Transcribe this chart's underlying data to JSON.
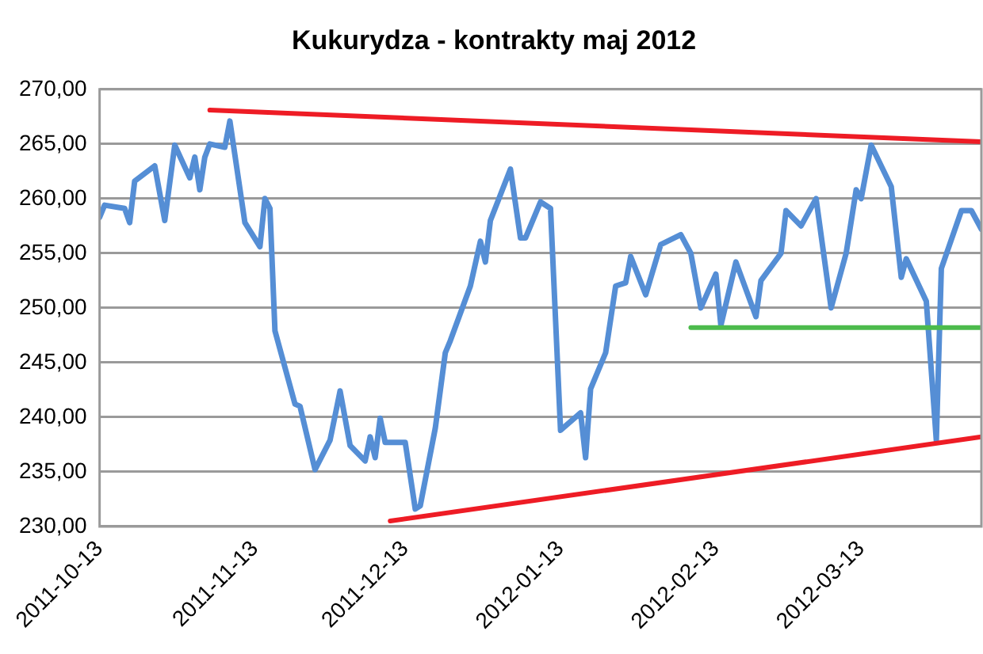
{
  "chart_data": {
    "type": "line",
    "title": "Kukurydza - kontrakty maj 2012",
    "x": [
      "2011-10-13",
      "2011-10-14",
      "2011-10-18",
      "2011-10-19",
      "2011-10-20",
      "2011-10-24",
      "2011-10-26",
      "2011-10-28",
      "2011-10-31",
      "2011-11-01",
      "2011-11-02",
      "2011-11-03",
      "2011-11-04",
      "2011-11-07",
      "2011-11-08",
      "2011-11-11",
      "2011-11-14",
      "2011-11-15",
      "2011-11-16",
      "2011-11-17",
      "2011-11-21",
      "2011-11-22",
      "2011-11-25",
      "2011-11-28",
      "2011-11-30",
      "2011-12-02",
      "2011-12-05",
      "2011-12-06",
      "2011-12-07",
      "2011-12-08",
      "2011-12-09",
      "2011-12-13",
      "2011-12-15",
      "2011-12-16",
      "2011-12-19",
      "2011-12-21",
      "2011-12-22",
      "2011-12-26",
      "2011-12-28",
      "2011-12-29",
      "2011-12-30",
      "2012-01-03",
      "2012-01-05",
      "2012-01-06",
      "2012-01-09",
      "2012-01-11",
      "2012-01-13",
      "2012-01-17",
      "2012-01-18",
      "2012-01-19",
      "2012-01-22",
      "2012-01-24",
      "2012-01-26",
      "2012-01-27",
      "2012-01-30",
      "2012-02-02",
      "2012-02-06",
      "2012-02-08",
      "2012-02-10",
      "2012-02-13",
      "2012-02-14",
      "2012-02-17",
      "2012-02-21",
      "2012-02-22",
      "2012-02-26",
      "2012-02-27",
      "2012-03-01",
      "2012-03-04",
      "2012-03-07",
      "2012-03-10",
      "2012-03-12",
      "2012-03-13",
      "2012-03-15",
      "2012-03-19",
      "2012-03-21",
      "2012-03-22",
      "2012-03-26",
      "2012-03-28",
      "2012-03-29",
      "2012-04-02",
      "2012-04-04",
      "2012-04-06"
    ],
    "series": [
      {
        "color": "#558ed5",
        "values": [
          258.3,
          259.4,
          259.1,
          257.8,
          261.6,
          263.0,
          258.0,
          264.9,
          261.9,
          263.8,
          260.8,
          263.8,
          265.0,
          264.7,
          267.1,
          257.8,
          255.6,
          260.0,
          259.1,
          247.9,
          241.2,
          241.0,
          235.2,
          237.9,
          242.4,
          237.4,
          236.0,
          238.2,
          236.3,
          239.9,
          237.7,
          237.7,
          231.6,
          231.9,
          239.0,
          245.9,
          247.0,
          252.0,
          256.1,
          254.2,
          258.0,
          262.7,
          256.4,
          256.4,
          259.7,
          259.1,
          238.8,
          240.4,
          236.3,
          242.6,
          245.9,
          252.0,
          252.3,
          254.7,
          251.2,
          255.8,
          256.7,
          255.0,
          250.0,
          253.1,
          248.4,
          254.2,
          249.2,
          252.5,
          255.0,
          258.9,
          257.5,
          260.0,
          250.0,
          255.0,
          260.8,
          260.0,
          264.9,
          261.1,
          252.8,
          254.5,
          250.6,
          237.9,
          253.6,
          258.9,
          258.9,
          257.2
        ]
      },
      {
        "type": "line",
        "color": "#ee1c25",
        "x": [
          "2011-11-04",
          "2012-04-06"
        ],
        "values": [
          268.1,
          265.2
        ]
      },
      {
        "type": "line",
        "color": "#ee1c25",
        "x": [
          "2011-12-10",
          "2012-04-06"
        ],
        "values": [
          230.5,
          238.2
        ]
      },
      {
        "type": "line",
        "color": "#4cbb4c",
        "x": [
          "2012-02-08",
          "2012-04-06"
        ],
        "values": [
          248.2,
          248.2
        ]
      }
    ],
    "xlim": [
      "2011-10-13",
      "2012-04-06"
    ],
    "xticks": [
      "2011-10-13",
      "2011-11-13",
      "2011-12-13",
      "2012-01-13",
      "2012-02-13",
      "2012-03-13"
    ],
    "ylim": [
      230,
      270
    ],
    "yticks": [
      {
        "value": 230,
        "label": "230,00"
      },
      {
        "value": 235,
        "label": "235,00"
      },
      {
        "value": 240,
        "label": "240,00"
      },
      {
        "value": 245,
        "label": "245,00"
      },
      {
        "value": 250,
        "label": "250,00"
      },
      {
        "value": 255,
        "label": "255,00"
      },
      {
        "value": 260,
        "label": "260,00"
      },
      {
        "value": 265,
        "label": "265,00"
      },
      {
        "value": 270,
        "label": "270,00"
      }
    ],
    "grid": "y",
    "legend": false
  }
}
